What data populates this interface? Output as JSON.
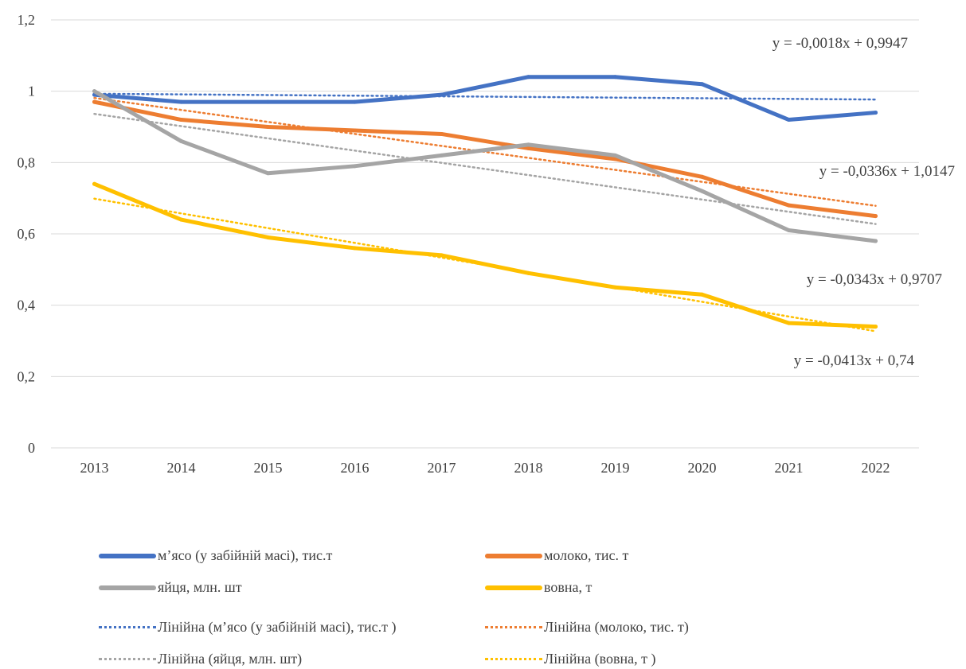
{
  "chart_data": {
    "type": "line",
    "categories": [
      "2013",
      "2014",
      "2015",
      "2016",
      "2017",
      "2018",
      "2019",
      "2020",
      "2021",
      "2022"
    ],
    "ylim": [
      0,
      1.2
    ],
    "y_ticks": [
      "0",
      "0,2",
      "0,4",
      "0,6",
      "0,8",
      "1",
      "1,2"
    ],
    "grid": true,
    "legend_position": "bottom",
    "series": [
      {
        "name": "м’ясо (у забійній масі), тис.т",
        "color": "#4472C4",
        "values": [
          0.99,
          0.97,
          0.97,
          0.97,
          0.99,
          1.04,
          1.04,
          1.02,
          0.92,
          0.94
        ]
      },
      {
        "name": "молоко, тис. т",
        "color": "#ED7D31",
        "values": [
          0.97,
          0.92,
          0.9,
          0.89,
          0.88,
          0.84,
          0.81,
          0.76,
          0.68,
          0.65
        ]
      },
      {
        "name": "яйця, млн. шт",
        "color": "#A5A5A5",
        "values": [
          1.0,
          0.86,
          0.77,
          0.79,
          0.82,
          0.85,
          0.82,
          0.72,
          0.61,
          0.58
        ]
      },
      {
        "name": "вовна, т",
        "color": "#FFC000",
        "values": [
          0.74,
          0.64,
          0.59,
          0.56,
          0.54,
          0.49,
          0.45,
          0.43,
          0.35,
          0.34
        ]
      }
    ],
    "trendlines": [
      {
        "name": "Лінійна (м’ясо (у забійній масі), тис.т )",
        "color": "#4472C4",
        "slope": -0.0018,
        "intercept": 0.9947,
        "equation": "y = -0,0018x + 0,9947"
      },
      {
        "name": "Лінійна (молоко, тис. т)",
        "color": "#ED7D31",
        "slope": -0.0336,
        "intercept": 1.0147,
        "equation": "y = -0,0336x + 1,0147"
      },
      {
        "name": "Лінійна (яйця, млн. шт)",
        "color": "#A5A5A5",
        "slope": -0.0343,
        "intercept": 0.9707,
        "equation": "y = -0,0343x + 0,9707"
      },
      {
        "name": "Лінійна (вовна, т )",
        "color": "#FFC000",
        "slope": -0.0413,
        "intercept": 0.74,
        "equation": "y = -0,0413x + 0,74"
      }
    ]
  }
}
